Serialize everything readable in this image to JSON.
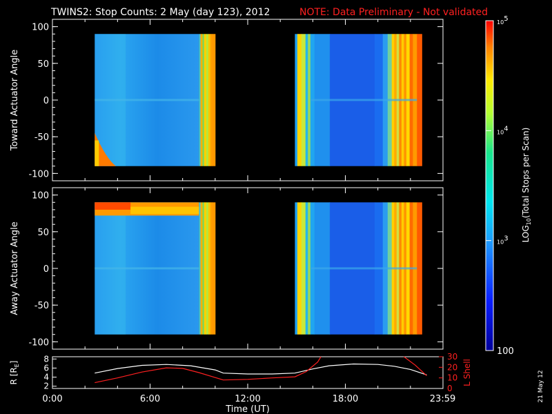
{
  "chart_data": {
    "type": "heatmap",
    "title": "TWINS2: Stop Counts:  2 May (day 123), 2012",
    "note": "NOTE: Data Preliminary - Not validated",
    "xlabel": "Time (UT)",
    "x_ticks": [
      "0:00",
      "6:00",
      "12:00",
      "18:00",
      "23:59"
    ],
    "xlim": [
      0,
      24
    ],
    "panels": [
      {
        "ylabel": "Toward Actuator Angle",
        "ylim": [
          -110,
          110
        ],
        "y_ticks": [
          "100",
          "50",
          "0",
          "-50",
          "-100"
        ],
        "data_intervals_hours": [
          [
            2.6,
            10.0
          ],
          [
            14.9,
            22.7
          ]
        ]
      },
      {
        "ylabel": "Away Actuator Angle",
        "ylim": [
          -110,
          110
        ],
        "y_ticks": [
          "100",
          "50",
          "0",
          "-50",
          "-100"
        ],
        "data_intervals_hours": [
          [
            2.6,
            10.0
          ],
          [
            14.9,
            22.7
          ]
        ]
      }
    ],
    "colorbar": {
      "label_prefix": "LOG",
      "label_sub": "10",
      "label_suffix": "(Total Stops per Scan)",
      "scale": "log",
      "range": [
        100,
        100000
      ],
      "ticks": [
        {
          "base": "10",
          "exp": "5",
          "value": 100000
        },
        {
          "base": "10",
          "exp": "4",
          "value": 10000
        },
        {
          "base": "10",
          "exp": "3",
          "value": 1000
        },
        {
          "label": "100",
          "value": 100
        }
      ]
    },
    "orbit": {
      "left_label": "R [R",
      "left_label_sub": "E",
      "left_label_end": "]",
      "right_label": "L Shell",
      "left_ticks": [
        "2",
        "4",
        "6",
        "8"
      ],
      "right_ticks": [
        "10",
        "20",
        "30"
      ],
      "R_ylim": [
        1.5,
        8.5
      ],
      "L_ylim": [
        0,
        30
      ],
      "R_series": {
        "x": [
          2.6,
          4,
          5.5,
          7,
          8.5,
          10,
          10.5,
          12,
          13.5,
          14.9,
          16,
          17,
          18.5,
          20,
          21,
          22,
          23
        ],
        "y": [
          4.9,
          5.9,
          6.6,
          6.8,
          6.5,
          5.6,
          4.9,
          4.7,
          4.7,
          4.9,
          5.8,
          6.5,
          6.9,
          6.8,
          6.4,
          5.7,
          4.5
        ]
      },
      "L_series": {
        "x": [
          2.6,
          4,
          5.5,
          7,
          8,
          9,
          10.5,
          12,
          13.5,
          14.9,
          15.6,
          16.3,
          16.5
        ],
        "y": [
          5.5,
          10,
          15.5,
          19.5,
          19,
          15,
          8,
          8.6,
          10,
          11,
          16,
          25,
          30
        ]
      },
      "L_series_2": {
        "x": [
          21.6,
          22.3,
          23.0
        ],
        "y": [
          30,
          22,
          12
        ]
      }
    },
    "footer": "21 May 12"
  }
}
